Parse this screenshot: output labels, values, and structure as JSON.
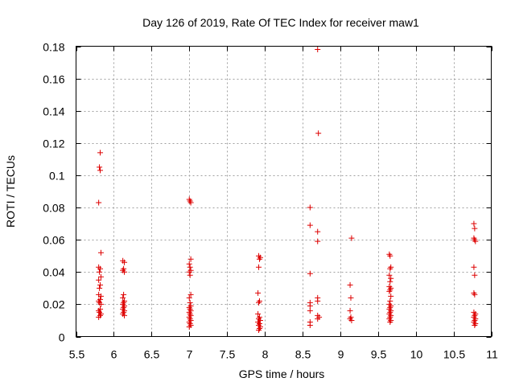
{
  "chart_data": {
    "type": "scatter",
    "title": "Day 126 of 2019, Rate Of TEC Index for receiver maw1",
    "xlabel": "GPS time / hours",
    "ylabel": "ROTI / TECUs",
    "xlim": [
      5.5,
      11
    ],
    "ylim": [
      0,
      0.18
    ],
    "xticks": [
      5.5,
      6,
      6.5,
      7,
      7.5,
      8,
      8.5,
      9,
      9.5,
      10,
      10.5,
      11
    ],
    "xtick_labels": [
      "5.5",
      "6",
      "6.5",
      "7",
      "7.5",
      "8",
      "8.5",
      "9",
      "9.5",
      "10",
      "10.5",
      "11"
    ],
    "yticks": [
      0,
      0.02,
      0.04,
      0.06,
      0.08,
      0.1,
      0.12,
      0.14,
      0.16,
      0.18
    ],
    "ytick_labels": [
      "0",
      "0.02",
      "0.04",
      "0.06",
      "0.08",
      "0.1",
      "0.12",
      "0.14",
      "0.16",
      "0.18"
    ],
    "grid": true,
    "marker": "+",
    "color": "#dd0000",
    "points": [
      [
        5.82,
        0.114
      ],
      [
        5.81,
        0.105
      ],
      [
        5.82,
        0.103
      ],
      [
        5.8,
        0.083
      ],
      [
        5.83,
        0.052
      ],
      [
        5.8,
        0.043
      ],
      [
        5.82,
        0.042
      ],
      [
        5.81,
        0.04
      ],
      [
        5.83,
        0.037
      ],
      [
        5.8,
        0.035
      ],
      [
        5.82,
        0.032
      ],
      [
        5.81,
        0.03
      ],
      [
        5.8,
        0.026
      ],
      [
        5.83,
        0.025
      ],
      [
        5.82,
        0.023
      ],
      [
        5.8,
        0.022
      ],
      [
        5.81,
        0.021
      ],
      [
        5.83,
        0.02
      ],
      [
        5.82,
        0.017
      ],
      [
        5.8,
        0.016
      ],
      [
        5.81,
        0.015
      ],
      [
        5.83,
        0.014
      ],
      [
        5.82,
        0.013
      ],
      [
        5.8,
        0.012
      ],
      [
        6.12,
        0.047
      ],
      [
        6.14,
        0.046
      ],
      [
        6.13,
        0.042
      ],
      [
        6.12,
        0.041
      ],
      [
        6.14,
        0.04
      ],
      [
        6.13,
        0.026
      ],
      [
        6.12,
        0.024
      ],
      [
        6.14,
        0.022
      ],
      [
        6.13,
        0.021
      ],
      [
        6.12,
        0.02
      ],
      [
        6.14,
        0.019
      ],
      [
        6.13,
        0.018
      ],
      [
        6.12,
        0.017
      ],
      [
        6.14,
        0.016
      ],
      [
        6.13,
        0.015
      ],
      [
        6.12,
        0.014
      ],
      [
        6.14,
        0.013
      ],
      [
        7.0,
        0.085
      ],
      [
        7.01,
        0.084
      ],
      [
        7.02,
        0.083
      ],
      [
        7.02,
        0.048
      ],
      [
        7.0,
        0.045
      ],
      [
        7.01,
        0.043
      ],
      [
        7.02,
        0.041
      ],
      [
        7.0,
        0.04
      ],
      [
        7.01,
        0.038
      ],
      [
        7.02,
        0.026
      ],
      [
        7.0,
        0.024
      ],
      [
        7.01,
        0.021
      ],
      [
        7.02,
        0.019
      ],
      [
        7.0,
        0.018
      ],
      [
        7.01,
        0.017
      ],
      [
        7.02,
        0.016
      ],
      [
        7.0,
        0.015
      ],
      [
        7.01,
        0.014
      ],
      [
        7.02,
        0.013
      ],
      [
        7.0,
        0.012
      ],
      [
        7.01,
        0.011
      ],
      [
        7.02,
        0.01
      ],
      [
        7.0,
        0.009
      ],
      [
        7.01,
        0.008
      ],
      [
        7.02,
        0.007
      ],
      [
        7.0,
        0.006
      ],
      [
        7.92,
        0.05
      ],
      [
        7.94,
        0.049
      ],
      [
        7.93,
        0.048
      ],
      [
        7.92,
        0.043
      ],
      [
        7.91,
        0.027
      ],
      [
        7.93,
        0.022
      ],
      [
        7.92,
        0.021
      ],
      [
        7.91,
        0.014
      ],
      [
        7.93,
        0.012
      ],
      [
        7.92,
        0.011
      ],
      [
        7.94,
        0.01
      ],
      [
        7.91,
        0.009
      ],
      [
        7.93,
        0.008
      ],
      [
        7.92,
        0.007
      ],
      [
        7.94,
        0.006
      ],
      [
        7.93,
        0.005
      ],
      [
        7.92,
        0.004
      ],
      [
        8.7,
        0.178
      ],
      [
        8.71,
        0.126
      ],
      [
        8.6,
        0.08
      ],
      [
        8.6,
        0.069
      ],
      [
        8.7,
        0.065
      ],
      [
        8.7,
        0.059
      ],
      [
        8.6,
        0.039
      ],
      [
        8.7,
        0.024
      ],
      [
        8.7,
        0.022
      ],
      [
        8.6,
        0.021
      ],
      [
        8.6,
        0.019
      ],
      [
        8.6,
        0.016
      ],
      [
        8.7,
        0.013
      ],
      [
        8.72,
        0.012
      ],
      [
        8.7,
        0.011
      ],
      [
        8.6,
        0.009
      ],
      [
        8.6,
        0.007
      ],
      [
        9.15,
        0.061
      ],
      [
        9.13,
        0.032
      ],
      [
        9.14,
        0.024
      ],
      [
        9.13,
        0.016
      ],
      [
        9.14,
        0.012
      ],
      [
        9.13,
        0.011
      ],
      [
        9.15,
        0.01
      ],
      [
        9.65,
        0.051
      ],
      [
        9.66,
        0.05
      ],
      [
        9.67,
        0.043
      ],
      [
        9.66,
        0.042
      ],
      [
        9.65,
        0.038
      ],
      [
        9.67,
        0.036
      ],
      [
        9.66,
        0.034
      ],
      [
        9.65,
        0.031
      ],
      [
        9.67,
        0.03
      ],
      [
        9.66,
        0.029
      ],
      [
        9.65,
        0.028
      ],
      [
        9.67,
        0.025
      ],
      [
        9.66,
        0.022
      ],
      [
        9.65,
        0.02
      ],
      [
        9.67,
        0.019
      ],
      [
        9.66,
        0.018
      ],
      [
        9.65,
        0.017
      ],
      [
        9.67,
        0.016
      ],
      [
        9.66,
        0.015
      ],
      [
        9.65,
        0.014
      ],
      [
        9.67,
        0.013
      ],
      [
        9.66,
        0.012
      ],
      [
        9.65,
        0.011
      ],
      [
        9.67,
        0.01
      ],
      [
        9.66,
        0.009
      ],
      [
        10.77,
        0.07
      ],
      [
        10.78,
        0.067
      ],
      [
        10.77,
        0.061
      ],
      [
        10.78,
        0.06
      ],
      [
        10.79,
        0.059
      ],
      [
        10.77,
        0.043
      ],
      [
        10.78,
        0.038
      ],
      [
        10.77,
        0.027
      ],
      [
        10.78,
        0.026
      ],
      [
        10.77,
        0.015
      ],
      [
        10.79,
        0.014
      ],
      [
        10.78,
        0.013
      ],
      [
        10.77,
        0.012
      ],
      [
        10.79,
        0.011
      ],
      [
        10.78,
        0.01
      ],
      [
        10.77,
        0.009
      ],
      [
        10.79,
        0.008
      ],
      [
        10.78,
        0.007
      ]
    ]
  }
}
